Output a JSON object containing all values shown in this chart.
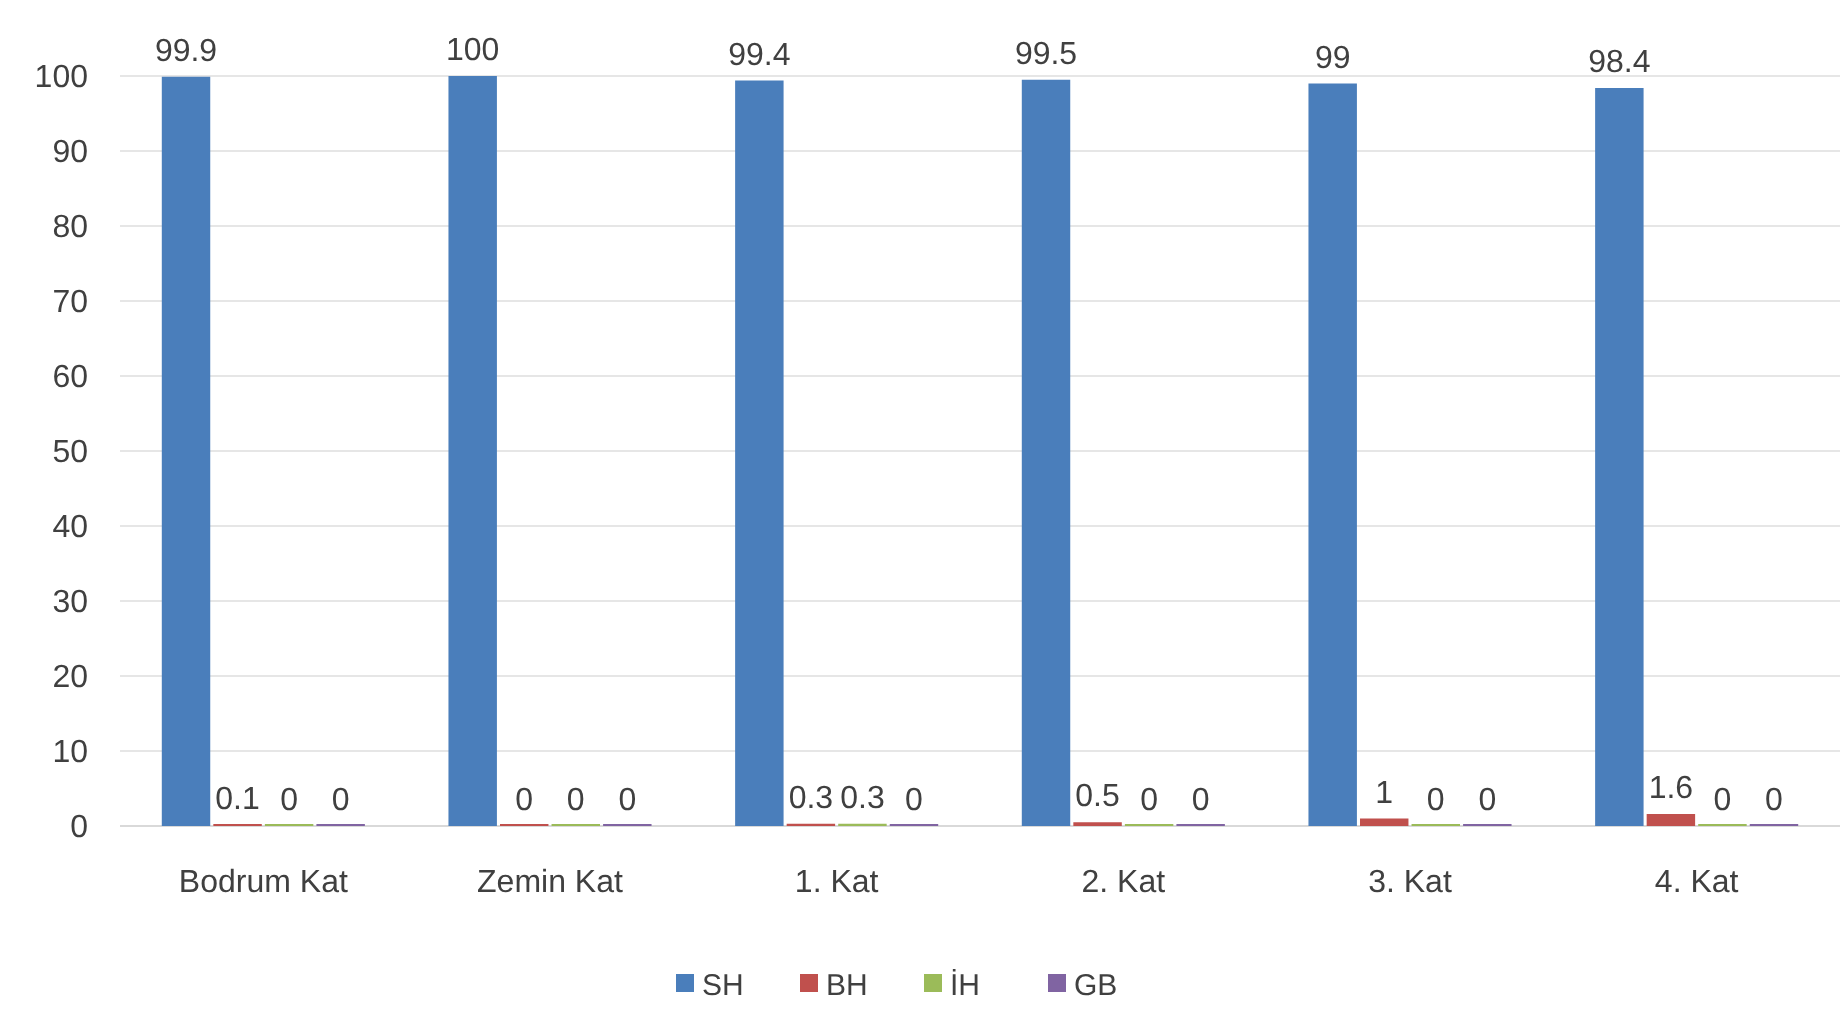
{
  "chart_data": {
    "type": "bar",
    "categories": [
      "Bodrum Kat",
      "Zemin Kat",
      "1. Kat",
      "2. Kat",
      "3. Kat",
      "4. Kat"
    ],
    "series": [
      {
        "name": "SH",
        "color": "#4a7ebb",
        "values": [
          99.9,
          100,
          99.4,
          99.5,
          99,
          98.4
        ]
      },
      {
        "name": "BH",
        "color": "#c0504d",
        "values": [
          0.1,
          0,
          0.3,
          0.5,
          1,
          1.6
        ]
      },
      {
        "name": "İH",
        "color": "#9bbb59",
        "values": [
          0,
          0,
          0.3,
          0,
          0,
          0
        ]
      },
      {
        "name": "GB",
        "color": "#8064a2",
        "values": [
          0,
          0,
          0,
          0,
          0,
          0
        ]
      }
    ],
    "ylim": [
      0,
      100
    ],
    "yticks": [
      0,
      10,
      20,
      30,
      40,
      50,
      60,
      70,
      80,
      90,
      100
    ],
    "grid": "y",
    "legend": "bottom",
    "data_labels": true
  }
}
